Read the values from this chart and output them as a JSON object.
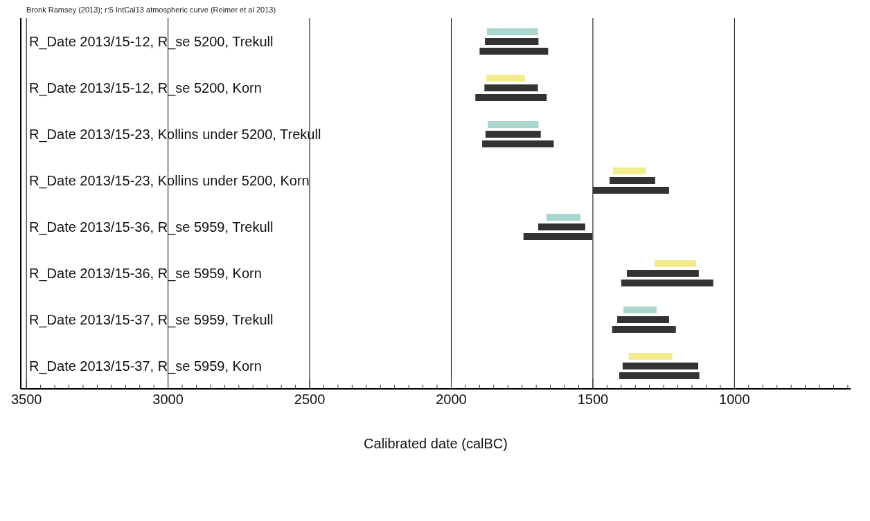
{
  "chart_data": {
    "type": "bar",
    "orientation": "horizontal",
    "subtitle": "Bronk Ramsey (2013); r:5 IntCal13 atmospheric curve (Reimer et al 2013)",
    "xlabel": "Calibrated date (calBC)",
    "categories": [
      "R_Date 2013/15-12, R_se 5200, Trekull",
      "R_Date 2013/15-12, R_se 5200, Korn",
      "R_Date 2013/15-23, Kollins under 5200, Trekull",
      "R_Date 2013/15-23, Kollins under 5200, Korn",
      "R_Date 2013/15-36, R_se 5959, Trekull",
      "R_Date 2013/15-36, R_se 5959, Korn",
      "R_Date 2013/15-37, R_se 5959, Trekull",
      "R_Date 2013/15-37, R_se 5959, Korn"
    ],
    "series": [
      {
        "colors": [
          "#a9d6cf",
          "#f3ec8c",
          "#a9d6cf",
          "#f3ec8c",
          "#a9d6cf",
          "#f3ec8c",
          "#a9d6cf",
          "#f3ec8c"
        ],
        "base": [
          1694,
          1740,
          1692,
          1312,
          1544,
          1136,
          1275,
          1219
        ],
        "values": [
          180,
          136,
          179,
          117,
          120,
          146,
          117,
          154
        ]
      },
      {
        "color": "#333333",
        "base": [
          1692,
          1694,
          1684,
          1280,
          1527,
          1126,
          1231,
          1128
        ],
        "values": [
          189,
          189,
          195,
          161,
          166,
          254,
          183,
          267
        ]
      },
      {
        "color": "#333333",
        "base": [
          1658,
          1663,
          1638,
          1231,
          1502,
          1075,
          1207,
          1124
        ],
        "values": [
          242,
          252,
          253,
          269,
          243,
          325,
          225,
          283
        ]
      }
    ],
    "xlim": [
      3520,
      590
    ],
    "xticks": [
      3500,
      {
        "value": 3450,
        "label": null
      },
      {
        "value": 3400,
        "label": null
      },
      {
        "value": 3350,
        "label": null
      },
      {
        "value": 3300,
        "label": null
      },
      {
        "value": 3250,
        "label": null
      },
      {
        "value": 3200,
        "label": null
      },
      {
        "value": 3150,
        "label": null
      },
      {
        "value": 3100,
        "label": null
      },
      {
        "value": 3050,
        "label": null
      },
      3000,
      {
        "value": 2950,
        "label": null
      },
      {
        "value": 2900,
        "label": null
      },
      {
        "value": 2850,
        "label": null
      },
      {
        "value": 2800,
        "label": null
      },
      {
        "value": 2750,
        "label": null
      },
      {
        "value": 2700,
        "label": null
      },
      {
        "value": 2650,
        "label": null
      },
      {
        "value": 2600,
        "label": null
      },
      {
        "value": 2550,
        "label": null
      },
      2500,
      {
        "value": 2450,
        "label": null
      },
      {
        "value": 2400,
        "label": null
      },
      {
        "value": 2350,
        "label": null
      },
      {
        "value": 2300,
        "label": null
      },
      {
        "value": 2250,
        "label": null
      },
      {
        "value": 2200,
        "label": null
      },
      {
        "value": 2150,
        "label": null
      },
      {
        "value": 2100,
        "label": null
      },
      {
        "value": 2050,
        "label": null
      },
      2000,
      {
        "value": 1950,
        "label": null
      },
      {
        "value": 1900,
        "label": null
      },
      {
        "value": 1850,
        "label": null
      },
      {
        "value": 1800,
        "label": null
      },
      {
        "value": 1750,
        "label": null
      },
      {
        "value": 1700,
        "label": null
      },
      {
        "value": 1650,
        "label": null
      },
      {
        "value": 1600,
        "label": null
      },
      {
        "value": 1550,
        "label": null
      },
      1500,
      {
        "value": 1450,
        "label": null
      },
      {
        "value": 1400,
        "label": null
      },
      {
        "value": 1350,
        "label": null
      },
      {
        "value": 1300,
        "label": null
      },
      {
        "value": 1250,
        "label": null
      },
      {
        "value": 1200,
        "label": null
      },
      {
        "value": 1150,
        "label": null
      },
      {
        "value": 1100,
        "label": null
      },
      {
        "value": 1050,
        "label": null
      },
      1000,
      {
        "value": 950,
        "label": null
      },
      {
        "value": 900,
        "label": null
      },
      {
        "value": 850,
        "label": null
      },
      {
        "value": 800,
        "label": null
      },
      {
        "value": 750,
        "label": null
      },
      {
        "value": 700,
        "label": null
      },
      {
        "value": 650,
        "label": null
      },
      {
        "value": 600,
        "label": null
      }
    ],
    "grid": "x"
  }
}
